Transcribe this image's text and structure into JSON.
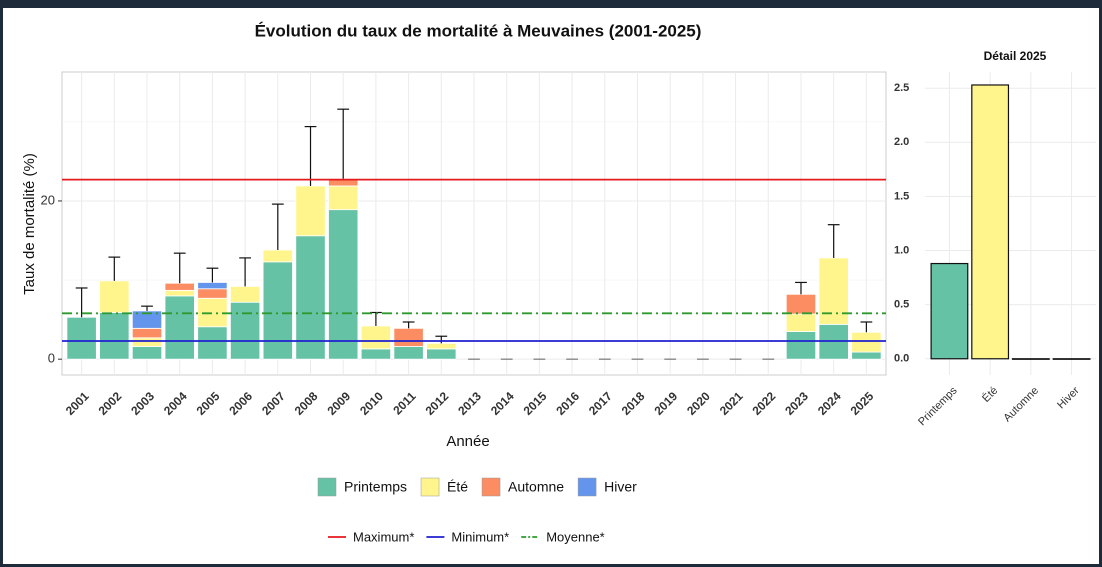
{
  "chart_data": [
    {
      "type": "stacked_bar",
      "title": "Évolution du taux de mortalité à Meuvaines (2001-2025)",
      "x_label": "Année",
      "y_label": "Taux de mortalité (%)",
      "categories": [
        "2001",
        "2002",
        "2003",
        "2004",
        "2005",
        "2006",
        "2007",
        "2008",
        "2009",
        "2010",
        "2011",
        "2012",
        "2013",
        "2014",
        "2015",
        "2016",
        "2017",
        "2018",
        "2019",
        "2020",
        "2021",
        "2022",
        "2023",
        "2024",
        "2025"
      ],
      "series": [
        {
          "name": "Printemps",
          "color": "#66c2a5",
          "values": [
            5.3,
            5.9,
            1.6,
            8.0,
            4.1,
            7.2,
            12.3,
            15.6,
            18.9,
            1.3,
            1.6,
            1.3,
            0,
            0,
            0,
            0,
            0,
            0,
            0,
            0,
            0,
            0,
            3.5,
            4.4,
            0.9
          ]
        },
        {
          "name": "Été",
          "color": "#fff58c",
          "values": [
            0,
            4.0,
            1.1,
            0.7,
            3.6,
            2.0,
            1.5,
            6.3,
            3.0,
            2.9,
            0,
            0.7,
            0,
            0,
            0,
            0,
            0,
            0,
            0,
            0,
            0,
            0,
            2.2,
            8.4,
            2.5
          ]
        },
        {
          "name": "Automne",
          "color": "#fc8d62",
          "values": [
            0,
            0,
            1.2,
            0.9,
            1.2,
            0,
            0,
            0,
            0.9,
            0,
            2.3,
            0,
            0,
            0,
            0,
            0,
            0,
            0,
            0,
            0,
            0,
            0,
            2.5,
            0,
            0
          ]
        },
        {
          "name": "Hiver",
          "color": "#6495ed",
          "values": [
            0,
            0,
            2.2,
            0,
            0.8,
            0,
            0,
            0,
            0,
            0,
            0,
            0,
            0,
            0,
            0,
            0,
            0,
            0,
            0,
            0,
            0,
            0,
            0,
            0,
            0
          ]
        }
      ],
      "errors": [
        3.7,
        3.0,
        0.6,
        3.8,
        1.8,
        3.6,
        5.8,
        7.5,
        8.8,
        1.7,
        0.8,
        0.9,
        0,
        0,
        0,
        0,
        0,
        0,
        0,
        0,
        0,
        0,
        1.5,
        4.2,
        1.3
      ],
      "reference_lines": [
        {
          "name": "Maximum*",
          "value": 22.7,
          "color": "#e41a1c",
          "dash": "solid"
        },
        {
          "name": "Minimum*",
          "value": 2.3,
          "color": "#1f1fd0",
          "dash": "solid"
        },
        {
          "name": "Moyenne*",
          "value": 5.8,
          "color": "#2e9a2e",
          "dash": "dashdot"
        }
      ],
      "ylim": [
        -2,
        36.3
      ],
      "yticks": [
        0,
        20
      ],
      "minor_yticks": [
        10,
        30
      ],
      "grid": true
    },
    {
      "type": "bar",
      "title": "Détail 2025",
      "categories": [
        "Printemps",
        "Été",
        "Automne",
        "Hiver"
      ],
      "values": [
        0.88,
        2.53,
        0,
        0
      ],
      "colors": [
        "#66c2a5",
        "#fff58c",
        "#fc8d62",
        "#6495ed"
      ],
      "ylim": [
        -0.15,
        2.65
      ],
      "yticks": [
        {
          "value": 0,
          "label": "0.0"
        },
        {
          "value": 0.5,
          "label": "0.5"
        },
        {
          "value": 1,
          "label": "1.0"
        },
        {
          "value": 1.5,
          "label": "1.5"
        },
        {
          "value": 2,
          "label": "2.0"
        },
        {
          "value": 2.5,
          "label": "2.5"
        }
      ],
      "grid": true
    }
  ]
}
